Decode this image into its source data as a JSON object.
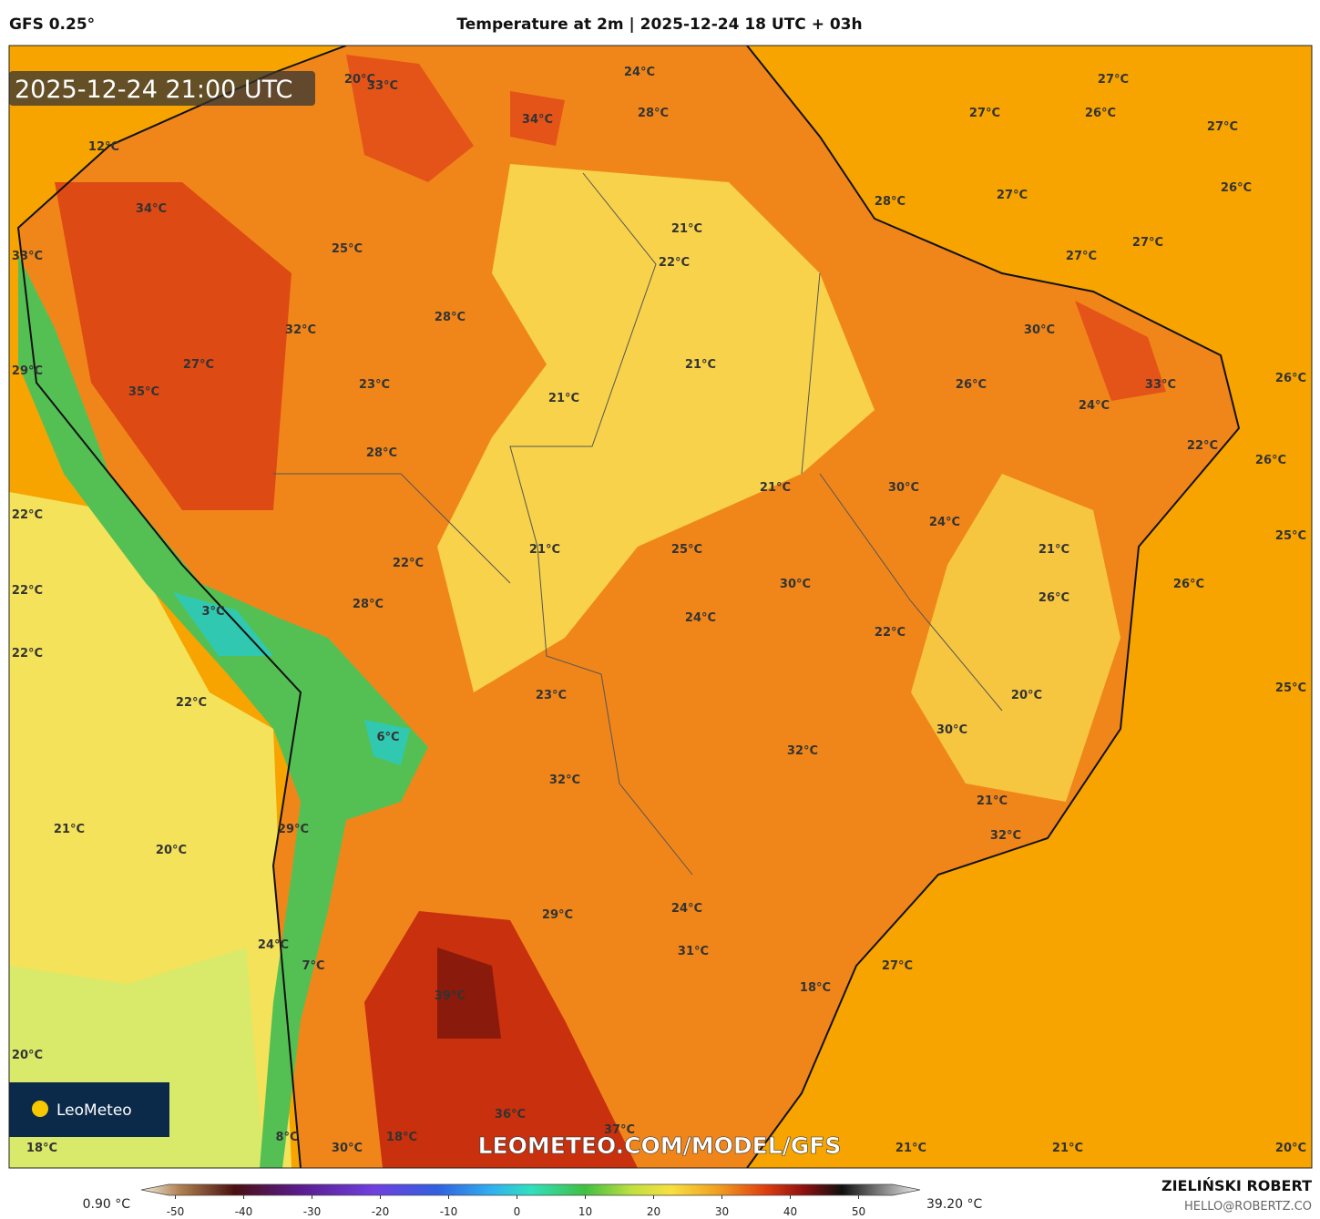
{
  "header": {
    "model": "GFS 0.25°",
    "title": "Temperature at 2m | 2025-12-24 18 UTC + 03h"
  },
  "map": {
    "timestamp": "2025-12-24 21:00 UTC",
    "watermark": "LEOMETEO.COM/MODEL/GFS",
    "logo": "LeoMeteo",
    "labels": [
      "20°C",
      "33°C",
      "24°C",
      "34°C",
      "28°C",
      "27°C",
      "27°C",
      "26°C",
      "27°C",
      "12°C",
      "34°C",
      "28°C",
      "27°C",
      "26°C",
      "21°C",
      "33°C",
      "25°C",
      "22°C",
      "27°C",
      "27°C",
      "32°C",
      "28°C",
      "30°C",
      "27°C",
      "21°C",
      "29°C",
      "26°C",
      "35°C",
      "23°C",
      "21°C",
      "26°C",
      "33°C",
      "24°C",
      "28°C",
      "22°C",
      "26°C",
      "21°C",
      "30°C",
      "22°C",
      "24°C",
      "25°C",
      "21°C",
      "25°C",
      "21°C",
      "22°C",
      "30°C",
      "26°C",
      "22°C",
      "28°C",
      "26°C",
      "3°C",
      "24°C",
      "22°C",
      "22°C",
      "20°C",
      "25°C",
      "23°C",
      "22°C",
      "6°C",
      "30°C",
      "32°C",
      "32°C",
      "21°C",
      "21°C",
      "29°C",
      "32°C",
      "20°C",
      "24°C",
      "29°C",
      "24°C",
      "31°C",
      "7°C",
      "27°C",
      "18°C",
      "39°C",
      "20°C",
      "36°C",
      "37°C",
      "8°C",
      "18°C",
      "18°C",
      "30°C",
      "21°C",
      "21°C",
      "20°C"
    ]
  },
  "colorbar": {
    "min_label": "0.90 °C",
    "max_label": "39.20 °C",
    "lim": [
      -55,
      59
    ],
    "ticks": [
      -50,
      -40,
      -30,
      -20,
      -10,
      0,
      10,
      20,
      30,
      40,
      50
    ]
  },
  "footer": {
    "author": "ZIELIŃSKI ROBERT",
    "email": "HELLO@ROBERTZ.CO"
  }
}
